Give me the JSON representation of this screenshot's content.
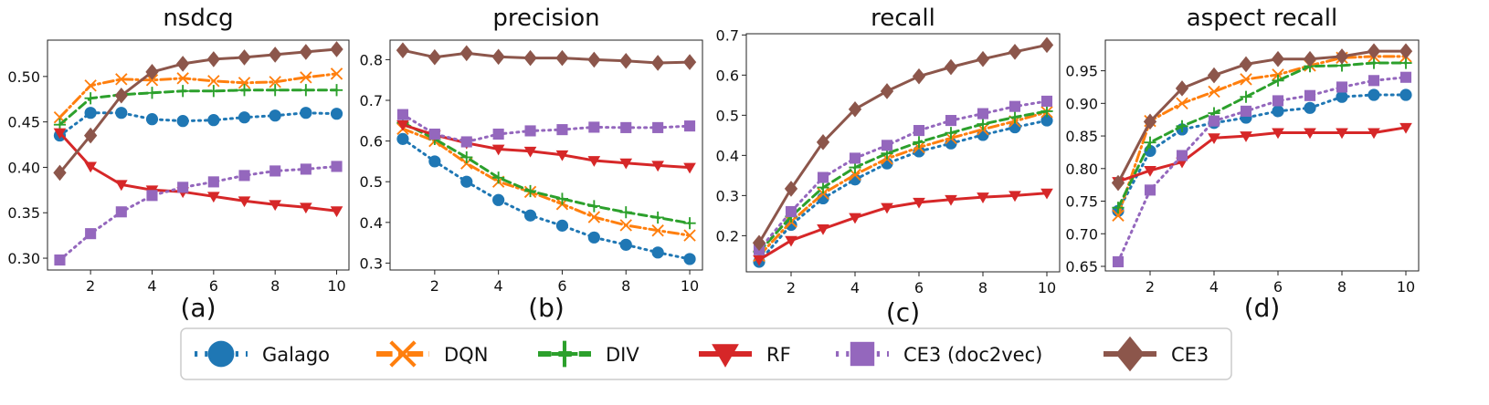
{
  "chart_data": [
    {
      "type": "line",
      "label": "(a)",
      "title": "nsdcg",
      "xlabel": "",
      "ylabel": "",
      "x": [
        1,
        2,
        3,
        4,
        5,
        6,
        7,
        8,
        9,
        10
      ],
      "xticks": [
        2,
        4,
        6,
        8,
        10
      ],
      "xlim": [
        0.6,
        10.4
      ],
      "ylim": [
        0.287,
        0.54
      ],
      "yticks": [
        0.3,
        0.35,
        0.4,
        0.45,
        0.5
      ],
      "ytick_labels": [
        "0.30",
        "0.35",
        "0.40",
        "0.45",
        "0.50"
      ],
      "series": [
        {
          "name": "Galago",
          "values": [
            0.435,
            0.46,
            0.46,
            0.453,
            0.451,
            0.452,
            0.455,
            0.457,
            0.46,
            0.459
          ]
        },
        {
          "name": "DQN",
          "values": [
            0.455,
            0.49,
            0.497,
            0.496,
            0.498,
            0.495,
            0.493,
            0.494,
            0.499,
            0.503
          ]
        },
        {
          "name": "DIV",
          "values": [
            0.447,
            0.476,
            0.48,
            0.482,
            0.484,
            0.484,
            0.485,
            0.485,
            0.485,
            0.485
          ]
        },
        {
          "name": "RF",
          "values": [
            0.438,
            0.401,
            0.381,
            0.375,
            0.373,
            0.368,
            0.363,
            0.359,
            0.356,
            0.352
          ]
        },
        {
          "name": "CE3 (doc2vec)",
          "values": [
            0.298,
            0.327,
            0.351,
            0.369,
            0.378,
            0.384,
            0.391,
            0.396,
            0.398,
            0.401
          ]
        },
        {
          "name": "CE3",
          "values": [
            0.394,
            0.435,
            0.479,
            0.505,
            0.514,
            0.519,
            0.521,
            0.524,
            0.527,
            0.53
          ]
        }
      ]
    },
    {
      "type": "line",
      "label": "(b)",
      "title": "precision",
      "xlabel": "",
      "ylabel": "",
      "x": [
        1,
        2,
        3,
        4,
        5,
        6,
        7,
        8,
        9,
        10
      ],
      "xticks": [
        2,
        4,
        6,
        8,
        10
      ],
      "xlim": [
        0.6,
        10.4
      ],
      "ylim": [
        0.283,
        0.848
      ],
      "yticks": [
        0.3,
        0.4,
        0.5,
        0.6,
        0.7,
        0.8
      ],
      "ytick_labels": [
        "0.3",
        "0.4",
        "0.5",
        "0.6",
        "0.7",
        "0.8"
      ],
      "series": [
        {
          "name": "Galago",
          "values": [
            0.605,
            0.55,
            0.5,
            0.455,
            0.417,
            0.392,
            0.363,
            0.345,
            0.326,
            0.31
          ]
        },
        {
          "name": "DQN",
          "values": [
            0.63,
            0.6,
            0.545,
            0.5,
            0.475,
            0.445,
            0.413,
            0.393,
            0.38,
            0.368
          ]
        },
        {
          "name": "DIV",
          "values": [
            0.645,
            0.605,
            0.56,
            0.51,
            0.477,
            0.458,
            0.44,
            0.425,
            0.412,
            0.398
          ]
        },
        {
          "name": "RF",
          "values": [
            0.64,
            0.615,
            0.595,
            0.58,
            0.575,
            0.566,
            0.552,
            0.546,
            0.54,
            0.535
          ]
        },
        {
          "name": "CE3 (doc2vec)",
          "values": [
            0.665,
            0.617,
            0.598,
            0.617,
            0.625,
            0.628,
            0.634,
            0.633,
            0.633,
            0.637
          ]
        },
        {
          "name": "CE3",
          "values": [
            0.823,
            0.806,
            0.816,
            0.807,
            0.804,
            0.804,
            0.8,
            0.797,
            0.792,
            0.794
          ]
        }
      ]
    },
    {
      "type": "line",
      "label": "(c)",
      "title": "recall",
      "xlabel": "",
      "ylabel": "",
      "x": [
        1,
        2,
        3,
        4,
        5,
        6,
        7,
        8,
        9,
        10
      ],
      "xticks": [
        2,
        4,
        6,
        8,
        10
      ],
      "xlim": [
        0.6,
        10.4
      ],
      "ylim": [
        0.11,
        0.703
      ],
      "yticks": [
        0.2,
        0.3,
        0.4,
        0.5,
        0.6,
        0.7
      ],
      "ytick_labels": [
        "0.2",
        "0.3",
        "0.4",
        "0.5",
        "0.6",
        "0.7"
      ],
      "series": [
        {
          "name": "Galago",
          "values": [
            0.135,
            0.227,
            0.293,
            0.34,
            0.38,
            0.41,
            0.43,
            0.451,
            0.47,
            0.487
          ]
        },
        {
          "name": "DQN",
          "values": [
            0.15,
            0.235,
            0.305,
            0.352,
            0.392,
            0.42,
            0.443,
            0.465,
            0.485,
            0.508
          ]
        },
        {
          "name": "DIV",
          "values": [
            0.16,
            0.248,
            0.32,
            0.37,
            0.405,
            0.433,
            0.456,
            0.478,
            0.495,
            0.51
          ]
        },
        {
          "name": "RF",
          "values": [
            0.14,
            0.188,
            0.217,
            0.245,
            0.27,
            0.283,
            0.29,
            0.296,
            0.3,
            0.306
          ]
        },
        {
          "name": "CE3 (doc2vec)",
          "values": [
            0.165,
            0.26,
            0.345,
            0.393,
            0.425,
            0.462,
            0.487,
            0.504,
            0.522,
            0.535
          ]
        },
        {
          "name": "CE3",
          "values": [
            0.182,
            0.317,
            0.433,
            0.515,
            0.56,
            0.597,
            0.62,
            0.64,
            0.658,
            0.675
          ]
        }
      ]
    },
    {
      "type": "line",
      "label": "(d)",
      "title": "aspect recall",
      "xlabel": "",
      "ylabel": "",
      "x": [
        1,
        2,
        3,
        4,
        5,
        6,
        7,
        8,
        9,
        10
      ],
      "xticks": [
        2,
        4,
        6,
        8,
        10
      ],
      "xlim": [
        0.6,
        10.4
      ],
      "ylim": [
        0.643,
        0.997
      ],
      "yticks": [
        0.65,
        0.7,
        0.75,
        0.8,
        0.85,
        0.9,
        0.95
      ],
      "ytick_labels": [
        "0.65",
        "0.70",
        "0.75",
        "0.80",
        "0.85",
        "0.90",
        "0.95"
      ],
      "series": [
        {
          "name": "Galago",
          "values": [
            0.735,
            0.827,
            0.86,
            0.87,
            0.878,
            0.888,
            0.893,
            0.91,
            0.913,
            0.913
          ]
        },
        {
          "name": "DQN",
          "values": [
            0.728,
            0.873,
            0.9,
            0.918,
            0.937,
            0.944,
            0.958,
            0.97,
            0.972,
            0.972
          ]
        },
        {
          "name": "DIV",
          "values": [
            0.74,
            0.84,
            0.865,
            0.885,
            0.91,
            0.935,
            0.957,
            0.958,
            0.962,
            0.962
          ]
        },
        {
          "name": "RF",
          "values": [
            0.78,
            0.797,
            0.81,
            0.847,
            0.85,
            0.855,
            0.855,
            0.855,
            0.855,
            0.863
          ]
        },
        {
          "name": "CE3 (doc2vec)",
          "values": [
            0.657,
            0.767,
            0.82,
            0.873,
            0.888,
            0.904,
            0.912,
            0.925,
            0.935,
            0.94
          ]
        },
        {
          "name": "CE3",
          "values": [
            0.778,
            0.872,
            0.923,
            0.943,
            0.96,
            0.968,
            0.968,
            0.972,
            0.98,
            0.98
          ]
        }
      ]
    }
  ],
  "legend": {
    "placement": "bottom",
    "entries": [
      {
        "name": "Galago",
        "color": "#1f77b4",
        "marker": "circle",
        "dash": "dotted"
      },
      {
        "name": "DQN",
        "color": "#ff7f0e",
        "marker": "x",
        "dash": "dashdot"
      },
      {
        "name": "DIV",
        "color": "#2ca02c",
        "marker": "plus",
        "dash": "dashed"
      },
      {
        "name": "RF",
        "color": "#d62728",
        "marker": "triangle-down",
        "dash": "solid"
      },
      {
        "name": "CE3 (doc2vec)",
        "color": "#9467bd",
        "marker": "square",
        "dash": "dotted"
      },
      {
        "name": "CE3",
        "color": "#8c564b",
        "marker": "diamond",
        "dash": "solid"
      }
    ]
  }
}
